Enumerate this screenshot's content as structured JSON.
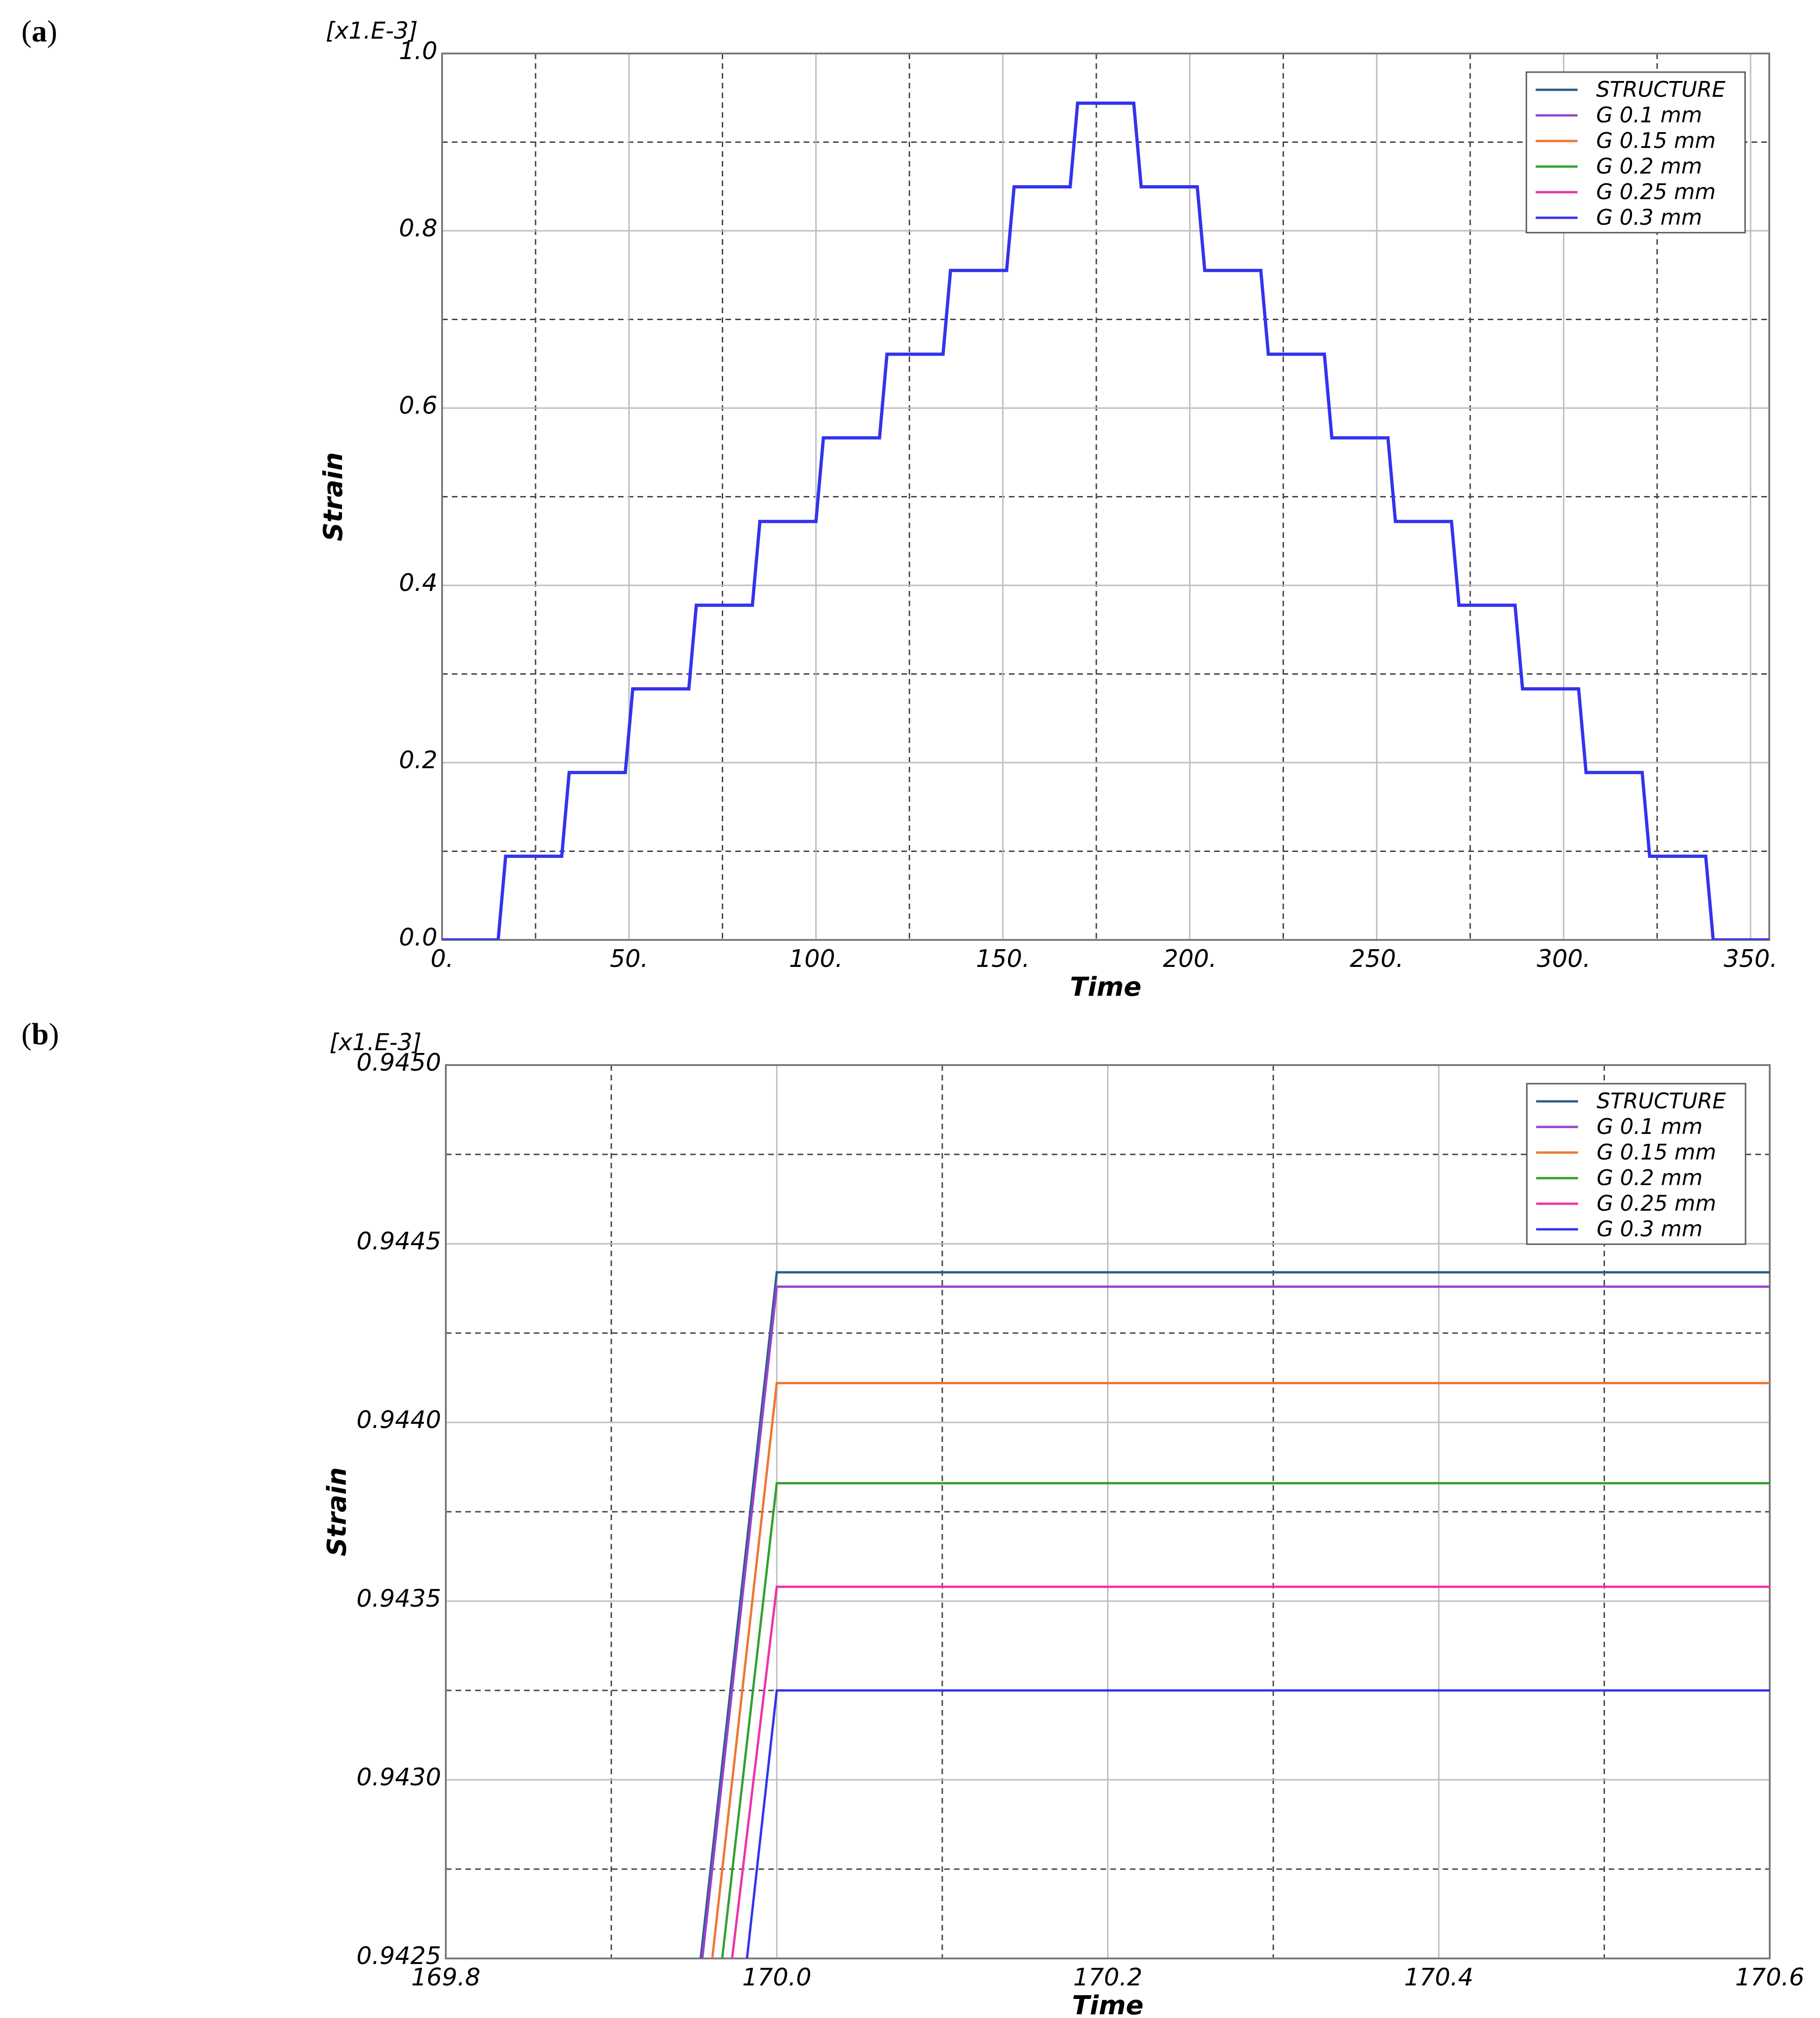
{
  "panels": [
    {
      "label_prefix": "(",
      "label_letter": "a",
      "label_suffix": ")"
    },
    {
      "label_prefix": "(",
      "label_letter": "b",
      "label_suffix": ")"
    }
  ],
  "colors": {
    "STRUCTURE": "#2e5f8a",
    "G 0.1 mm": "#9b40d0",
    "G 0.15 mm": "#ee7733",
    "G 0.2 mm": "#33a033",
    "G 0.25 mm": "#ee33aa",
    "G 0.3 mm": "#3333ee"
  },
  "chart_data": [
    {
      "type": "line",
      "panel": "a",
      "xlabel": "Time",
      "ylabel": "Strain",
      "y_multiplier": "[x1.E-3]",
      "xlim": [
        0,
        355
      ],
      "ylim": [
        0,
        1.0
      ],
      "xticks": [
        0,
        50,
        100,
        150,
        200,
        250,
        300,
        350
      ],
      "xtick_labels": [
        "0.",
        "50.",
        "100.",
        "150.",
        "200.",
        "250.",
        "300.",
        "350."
      ],
      "yticks": [
        0,
        0.2,
        0.4,
        0.6,
        0.8,
        1.0
      ],
      "ytick_labels": [
        "0.0",
        "0.2",
        "0.4",
        "0.6",
        "0.8",
        "1.0"
      ],
      "grid_minor_x": [
        25,
        75,
        125,
        175,
        225,
        275,
        325
      ],
      "grid_minor_y": [
        0.1,
        0.3,
        0.5,
        0.7,
        0.9
      ],
      "grid": true,
      "legend_position": "top-right",
      "legend": [
        "STRUCTURE",
        "G 0.1 mm",
        "G 0.15 mm",
        "G 0.2 mm",
        "G 0.25 mm",
        "G 0.3 mm"
      ],
      "series": [
        {
          "name": "G 0.3 mm",
          "x": [
            0,
            15,
            17,
            32,
            34,
            49,
            51,
            66,
            68,
            83,
            85,
            100,
            102,
            117,
            119,
            134,
            136,
            151,
            153,
            168,
            170,
            185,
            187,
            202,
            204,
            219,
            221,
            236,
            238,
            253,
            255,
            270,
            272,
            287,
            289,
            304,
            306,
            321,
            323,
            338,
            340,
            355
          ],
          "y": [
            0,
            0,
            0.0944,
            0.0944,
            0.1888,
            0.1888,
            0.2832,
            0.2832,
            0.3776,
            0.3776,
            0.472,
            0.472,
            0.5664,
            0.5664,
            0.6608,
            0.6608,
            0.7552,
            0.7552,
            0.8496,
            0.8496,
            0.944,
            0.944,
            0.8496,
            0.8496,
            0.7552,
            0.7552,
            0.6608,
            0.6608,
            0.5664,
            0.5664,
            0.472,
            0.472,
            0.3776,
            0.3776,
            0.2832,
            0.2832,
            0.1888,
            0.1888,
            0.0944,
            0.0944,
            0,
            0
          ]
        }
      ]
    },
    {
      "type": "line",
      "panel": "b",
      "xlabel": "Time",
      "ylabel": "Strain",
      "y_multiplier": "[x1.E-3]",
      "xlim": [
        169.8,
        170.6
      ],
      "ylim": [
        0.9425,
        0.945
      ],
      "xticks": [
        169.8,
        170.0,
        170.2,
        170.4,
        170.6
      ],
      "xtick_labels": [
        "169.8",
        "170.0",
        "170.2",
        "170.4",
        "170.6"
      ],
      "yticks": [
        0.9425,
        0.943,
        0.9435,
        0.944,
        0.9445,
        0.945
      ],
      "ytick_labels": [
        "0.9425",
        "0.9430",
        "0.9435",
        "0.9440",
        "0.9445",
        "0.9450"
      ],
      "grid_minor_x": [
        169.9,
        170.1,
        170.3,
        170.5
      ],
      "grid_minor_y": [
        0.94275,
        0.94325,
        0.94375,
        0.94425,
        0.94475
      ],
      "grid": true,
      "legend_position": "top-right",
      "legend": [
        "STRUCTURE",
        "G 0.1 mm",
        "G 0.15 mm",
        "G 0.2 mm",
        "G 0.25 mm",
        "G 0.3 mm"
      ],
      "series": [
        {
          "name": "STRUCTURE",
          "x": [
            169.954,
            170.0,
            170.6
          ],
          "y": [
            0.9425,
            0.94442,
            0.94442
          ]
        },
        {
          "name": "G 0.1 mm",
          "x": [
            169.955,
            170.0,
            170.6
          ],
          "y": [
            0.9425,
            0.94438,
            0.94438
          ]
        },
        {
          "name": "G 0.15 mm",
          "x": [
            169.961,
            170.0,
            170.6
          ],
          "y": [
            0.9425,
            0.94411,
            0.94411
          ]
        },
        {
          "name": "G 0.2 mm",
          "x": [
            169.967,
            170.0,
            170.6
          ],
          "y": [
            0.9425,
            0.94383,
            0.94383
          ]
        },
        {
          "name": "G 0.25 mm",
          "x": [
            169.973,
            170.0,
            170.6
          ],
          "y": [
            0.9425,
            0.94354,
            0.94354
          ]
        },
        {
          "name": "G 0.3 mm",
          "x": [
            169.982,
            170.0,
            170.6
          ],
          "y": [
            0.9425,
            0.94325,
            0.94325
          ]
        }
      ]
    }
  ]
}
